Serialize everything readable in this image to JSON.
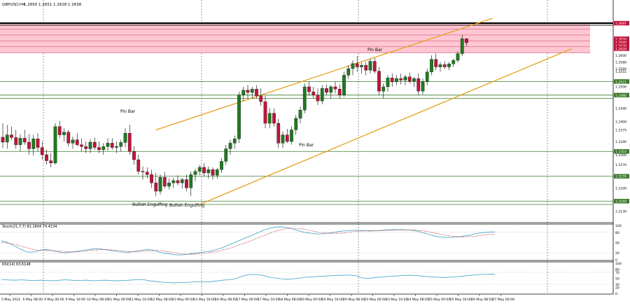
{
  "header": {
    "symbol": "GBPUSD,H4",
    "ohlc": "1.2650 1.2651 1.2628 1.2638"
  },
  "indicators": {
    "stoch_label": "Stoch(21,7,7) 81.2804 74.4134",
    "rsi_label": "RSI(14) 63.6148"
  },
  "annotations": [
    {
      "text": "Pin Bar",
      "id": "pin-bar-1"
    },
    {
      "text": "Bullish Engulfing",
      "id": "bullish-engulfing-1"
    },
    {
      "text": "Bullish Engulfing",
      "id": "bullish-engulfing-2"
    },
    {
      "text": "Pin Bar",
      "id": "pin-bar-2"
    },
    {
      "text": "Pin Bar",
      "id": "pin-bar-3"
    }
  ],
  "price_axis": [
    "1.2697",
    "1.2650",
    "1.2640",
    "1.2630",
    "1.2620",
    "1.2600",
    "1.2580",
    "1.2560",
    "1.2551",
    "1.2521",
    "1.2506",
    "1.2480",
    "1.2440",
    "1.2400",
    "1.2375",
    "1.2340",
    "1.2310",
    "1.2300",
    "1.2270",
    "1.2235",
    "1.2200",
    "1.2160",
    "1.2130",
    "1.2095"
  ],
  "stoch_axis": [
    "100",
    "80",
    "50",
    "20",
    "0"
  ],
  "rsi_axis": [
    "100",
    "80",
    "70",
    "50",
    "30",
    "20",
    "0"
  ],
  "time_axis": [
    "5 May 2022",
    "6 May 08:00",
    "9 May 00:00",
    "9 May 16:00",
    "10 May 08:00",
    "11 May 00:00",
    "11 May 16:00",
    "12 May 08:00",
    "13 May 00:00",
    "13 May 16:00",
    "16 May 08:00",
    "17 May 00:00",
    "17 May 16:00",
    "18 May 08:00",
    "19 May 00:00",
    "19 May 16:00",
    "20 May 08:00",
    "23 May 00:00",
    "23 May 16:00",
    "24 May 08:00",
    "25 May 00:00",
    "25 May 16:00",
    "26 May 08:00",
    "27 May 00:00"
  ],
  "colors": {
    "bull": "#1f7a1f",
    "bear": "#c0143c",
    "channel": "#e6a01e",
    "zone": "#ffc7d3",
    "support": "#3c7a2a"
  },
  "chart_data": {
    "type": "candlestick",
    "symbol": "GBPUSD",
    "timeframe": "H4",
    "ylim": [
      1.2095,
      1.2712
    ],
    "candles": [
      {
        "o": 1.2353,
        "h": 1.2395,
        "l": 1.232,
        "c": 1.2338
      },
      {
        "o": 1.2338,
        "h": 1.239,
        "l": 1.2318,
        "c": 1.236
      },
      {
        "o": 1.236,
        "h": 1.2385,
        "l": 1.2345,
        "c": 1.2352
      },
      {
        "o": 1.2352,
        "h": 1.2375,
        "l": 1.2318,
        "c": 1.233
      },
      {
        "o": 1.233,
        "h": 1.2362,
        "l": 1.231,
        "c": 1.235
      },
      {
        "o": 1.235,
        "h": 1.2375,
        "l": 1.233,
        "c": 1.2338
      },
      {
        "o": 1.2338,
        "h": 1.2362,
        "l": 1.23,
        "c": 1.2318
      },
      {
        "o": 1.2318,
        "h": 1.236,
        "l": 1.2298,
        "c": 1.2348
      },
      {
        "o": 1.2348,
        "h": 1.2365,
        "l": 1.231,
        "c": 1.2322
      },
      {
        "o": 1.2322,
        "h": 1.234,
        "l": 1.2285,
        "c": 1.23
      },
      {
        "o": 1.23,
        "h": 1.2315,
        "l": 1.227,
        "c": 1.2282
      },
      {
        "o": 1.2282,
        "h": 1.2305,
        "l": 1.2262,
        "c": 1.2275
      },
      {
        "o": 1.2275,
        "h": 1.2395,
        "l": 1.227,
        "c": 1.2385
      },
      {
        "o": 1.2385,
        "h": 1.2402,
        "l": 1.235,
        "c": 1.236
      },
      {
        "o": 1.236,
        "h": 1.238,
        "l": 1.234,
        "c": 1.2368
      },
      {
        "o": 1.2368,
        "h": 1.2375,
        "l": 1.2325,
        "c": 1.2335
      },
      {
        "o": 1.2335,
        "h": 1.2355,
        "l": 1.2318,
        "c": 1.2345
      },
      {
        "o": 1.2345,
        "h": 1.2365,
        "l": 1.2325,
        "c": 1.233
      },
      {
        "o": 1.233,
        "h": 1.235,
        "l": 1.231,
        "c": 1.2325
      },
      {
        "o": 1.2325,
        "h": 1.234,
        "l": 1.2305,
        "c": 1.2318
      },
      {
        "o": 1.2318,
        "h": 1.2348,
        "l": 1.2305,
        "c": 1.2338
      },
      {
        "o": 1.2338,
        "h": 1.2352,
        "l": 1.2315,
        "c": 1.2322
      },
      {
        "o": 1.2322,
        "h": 1.234,
        "l": 1.2305,
        "c": 1.2315
      },
      {
        "o": 1.2315,
        "h": 1.2335,
        "l": 1.23,
        "c": 1.2325
      },
      {
        "o": 1.2325,
        "h": 1.235,
        "l": 1.2312,
        "c": 1.2335
      },
      {
        "o": 1.2335,
        "h": 1.235,
        "l": 1.2315,
        "c": 1.2322
      },
      {
        "o": 1.2322,
        "h": 1.234,
        "l": 1.2305,
        "c": 1.2325
      },
      {
        "o": 1.2325,
        "h": 1.2345,
        "l": 1.231,
        "c": 1.2337
      },
      {
        "o": 1.2337,
        "h": 1.238,
        "l": 1.2322,
        "c": 1.2365
      },
      {
        "o": 1.2365,
        "h": 1.239,
        "l": 1.23,
        "c": 1.231
      },
      {
        "o": 1.231,
        "h": 1.2325,
        "l": 1.227,
        "c": 1.2285
      },
      {
        "o": 1.2285,
        "h": 1.23,
        "l": 1.224,
        "c": 1.225
      },
      {
        "o": 1.225,
        "h": 1.2265,
        "l": 1.2225,
        "c": 1.2248
      },
      {
        "o": 1.2248,
        "h": 1.2262,
        "l": 1.2228,
        "c": 1.224
      },
      {
        "o": 1.224,
        "h": 1.2255,
        "l": 1.22,
        "c": 1.2215
      },
      {
        "o": 1.2215,
        "h": 1.2245,
        "l": 1.2175,
        "c": 1.219
      },
      {
        "o": 1.219,
        "h": 1.224,
        "l": 1.218,
        "c": 1.2232
      },
      {
        "o": 1.2232,
        "h": 1.2248,
        "l": 1.2198,
        "c": 1.2205
      },
      {
        "o": 1.2205,
        "h": 1.2228,
        "l": 1.2195,
        "c": 1.2215
      },
      {
        "o": 1.2215,
        "h": 1.223,
        "l": 1.22,
        "c": 1.2222
      },
      {
        "o": 1.2222,
        "h": 1.2238,
        "l": 1.2208,
        "c": 1.2215
      },
      {
        "o": 1.2215,
        "h": 1.223,
        "l": 1.2198,
        "c": 1.2225
      },
      {
        "o": 1.2225,
        "h": 1.224,
        "l": 1.219,
        "c": 1.22
      },
      {
        "o": 1.22,
        "h": 1.225,
        "l": 1.2175,
        "c": 1.224
      },
      {
        "o": 1.224,
        "h": 1.2258,
        "l": 1.222,
        "c": 1.225
      },
      {
        "o": 1.225,
        "h": 1.227,
        "l": 1.2238,
        "c": 1.2262
      },
      {
        "o": 1.2262,
        "h": 1.2275,
        "l": 1.2235,
        "c": 1.2245
      },
      {
        "o": 1.2245,
        "h": 1.2265,
        "l": 1.2228,
        "c": 1.2255
      },
      {
        "o": 1.2255,
        "h": 1.2262,
        "l": 1.2225,
        "c": 1.2238
      },
      {
        "o": 1.2238,
        "h": 1.226,
        "l": 1.2228,
        "c": 1.2255
      },
      {
        "o": 1.2255,
        "h": 1.229,
        "l": 1.2245,
        "c": 1.228
      },
      {
        "o": 1.228,
        "h": 1.233,
        "l": 1.227,
        "c": 1.2318
      },
      {
        "o": 1.2318,
        "h": 1.2345,
        "l": 1.23,
        "c": 1.2335
      },
      {
        "o": 1.2335,
        "h": 1.2358,
        "l": 1.2318,
        "c": 1.2348
      },
      {
        "o": 1.2348,
        "h": 1.249,
        "l": 1.2335,
        "c": 1.248
      },
      {
        "o": 1.248,
        "h": 1.2505,
        "l": 1.2462,
        "c": 1.2495
      },
      {
        "o": 1.2495,
        "h": 1.251,
        "l": 1.247,
        "c": 1.2488
      },
      {
        "o": 1.2488,
        "h": 1.2505,
        "l": 1.247,
        "c": 1.2498
      },
      {
        "o": 1.2498,
        "h": 1.251,
        "l": 1.247,
        "c": 1.2478
      },
      {
        "o": 1.2478,
        "h": 1.25,
        "l": 1.2448,
        "c": 1.246
      },
      {
        "o": 1.246,
        "h": 1.2478,
        "l": 1.238,
        "c": 1.2395
      },
      {
        "o": 1.2395,
        "h": 1.244,
        "l": 1.238,
        "c": 1.2425
      },
      {
        "o": 1.2425,
        "h": 1.244,
        "l": 1.2385,
        "c": 1.2395
      },
      {
        "o": 1.2395,
        "h": 1.2408,
        "l": 1.232,
        "c": 1.2335
      },
      {
        "o": 1.2335,
        "h": 1.237,
        "l": 1.232,
        "c": 1.236
      },
      {
        "o": 1.236,
        "h": 1.2378,
        "l": 1.2335,
        "c": 1.234
      },
      {
        "o": 1.234,
        "h": 1.2385,
        "l": 1.233,
        "c": 1.2375
      },
      {
        "o": 1.2375,
        "h": 1.242,
        "l": 1.236,
        "c": 1.241
      },
      {
        "o": 1.241,
        "h": 1.2445,
        "l": 1.2395,
        "c": 1.2435
      },
      {
        "o": 1.2435,
        "h": 1.2515,
        "l": 1.2425,
        "c": 1.2505
      },
      {
        "o": 1.2505,
        "h": 1.252,
        "l": 1.2478,
        "c": 1.249
      },
      {
        "o": 1.249,
        "h": 1.2505,
        "l": 1.247,
        "c": 1.248
      },
      {
        "o": 1.248,
        "h": 1.25,
        "l": 1.245,
        "c": 1.2462
      },
      {
        "o": 1.2462,
        "h": 1.251,
        "l": 1.2452,
        "c": 1.25
      },
      {
        "o": 1.25,
        "h": 1.2512,
        "l": 1.248,
        "c": 1.2488
      },
      {
        "o": 1.2488,
        "h": 1.251,
        "l": 1.247,
        "c": 1.2505
      },
      {
        "o": 1.2505,
        "h": 1.252,
        "l": 1.2485,
        "c": 1.2498
      },
      {
        "o": 1.2498,
        "h": 1.2512,
        "l": 1.247,
        "c": 1.248
      },
      {
        "o": 1.248,
        "h": 1.255,
        "l": 1.2475,
        "c": 1.254
      },
      {
        "o": 1.254,
        "h": 1.257,
        "l": 1.2528,
        "c": 1.256
      },
      {
        "o": 1.256,
        "h": 1.2585,
        "l": 1.254,
        "c": 1.2575
      },
      {
        "o": 1.2575,
        "h": 1.2598,
        "l": 1.255,
        "c": 1.2565
      },
      {
        "o": 1.2565,
        "h": 1.2578,
        "l": 1.2545,
        "c": 1.257
      },
      {
        "o": 1.257,
        "h": 1.258,
        "l": 1.254,
        "c": 1.2555
      },
      {
        "o": 1.2555,
        "h": 1.259,
        "l": 1.2545,
        "c": 1.2582
      },
      {
        "o": 1.2582,
        "h": 1.2592,
        "l": 1.2545,
        "c": 1.2552
      },
      {
        "o": 1.2552,
        "h": 1.2565,
        "l": 1.248,
        "c": 1.2492
      },
      {
        "o": 1.2492,
        "h": 1.2515,
        "l": 1.247,
        "c": 1.2505
      },
      {
        "o": 1.2505,
        "h": 1.254,
        "l": 1.249,
        "c": 1.2532
      },
      {
        "o": 1.2532,
        "h": 1.2545,
        "l": 1.2505,
        "c": 1.252
      },
      {
        "o": 1.252,
        "h": 1.254,
        "l": 1.251,
        "c": 1.253
      },
      {
        "o": 1.253,
        "h": 1.2545,
        "l": 1.2512,
        "c": 1.2525
      },
      {
        "o": 1.2525,
        "h": 1.2542,
        "l": 1.251,
        "c": 1.2535
      },
      {
        "o": 1.2535,
        "h": 1.2548,
        "l": 1.2515,
        "c": 1.2522
      },
      {
        "o": 1.2522,
        "h": 1.2535,
        "l": 1.2505,
        "c": 1.253
      },
      {
        "o": 1.253,
        "h": 1.2545,
        "l": 1.248,
        "c": 1.2492
      },
      {
        "o": 1.2492,
        "h": 1.253,
        "l": 1.2482,
        "c": 1.252
      },
      {
        "o": 1.252,
        "h": 1.256,
        "l": 1.251,
        "c": 1.255
      },
      {
        "o": 1.255,
        "h": 1.26,
        "l": 1.254,
        "c": 1.2588
      },
      {
        "o": 1.2588,
        "h": 1.2605,
        "l": 1.2555,
        "c": 1.2565
      },
      {
        "o": 1.2565,
        "h": 1.258,
        "l": 1.255,
        "c": 1.2572
      },
      {
        "o": 1.2572,
        "h": 1.2582,
        "l": 1.2558,
        "c": 1.2565
      },
      {
        "o": 1.2565,
        "h": 1.258,
        "l": 1.2555,
        "c": 1.2574
      },
      {
        "o": 1.2574,
        "h": 1.259,
        "l": 1.2565,
        "c": 1.2585
      },
      {
        "o": 1.2585,
        "h": 1.2612,
        "l": 1.2578,
        "c": 1.2605
      },
      {
        "o": 1.2605,
        "h": 1.266,
        "l": 1.2598,
        "c": 1.265
      },
      {
        "o": 1.265,
        "h": 1.2651,
        "l": 1.2628,
        "c": 1.2638
      }
    ],
    "resistance_zone": [
      1.2608,
      1.2697
    ],
    "horizontal_levels": [
      1.2521,
      1.248,
      1.247,
      1.231,
      1.2235,
      1.216,
      1.215
    ],
    "channel_lines": [
      {
        "from": {
          "index": 35,
          "price": 1.2375
        },
        "to": {
          "index": 112,
          "price": 1.2712
        }
      },
      {
        "from": {
          "index": 45,
          "price": 1.215
        },
        "to": {
          "index": 130,
          "price": 1.262
        }
      }
    ],
    "stochastic": {
      "k": [
        55,
        52,
        45,
        38,
        30,
        24,
        22,
        24,
        28,
        30,
        28,
        25,
        22,
        20,
        22,
        24,
        26,
        28,
        30,
        32,
        32,
        30,
        28,
        26,
        24,
        22,
        22,
        24,
        26,
        28,
        30,
        28,
        24,
        20,
        18,
        16,
        14,
        14,
        16,
        18,
        20,
        22,
        24,
        26,
        30,
        34,
        40,
        46,
        52,
        58,
        64,
        70,
        76,
        82,
        88,
        92,
        95,
        96,
        95,
        92,
        88,
        84,
        80,
        78,
        76,
        75,
        76,
        78,
        80,
        82,
        84,
        85,
        86,
        86,
        85,
        84,
        84,
        85,
        86,
        87,
        88,
        88,
        88,
        87,
        86,
        84,
        80,
        76,
        72,
        68,
        66,
        65,
        65,
        66,
        68,
        70,
        72,
        76,
        78,
        80,
        81,
        81
      ],
      "d": [
        50,
        49,
        47,
        44,
        40,
        36,
        32,
        29,
        27,
        27,
        27,
        26,
        25,
        24,
        23,
        23,
        24,
        25,
        27,
        28,
        29,
        30,
        29,
        28,
        27,
        26,
        24,
        24,
        24,
        25,
        26,
        27,
        27,
        26,
        24,
        21,
        19,
        17,
        16,
        16,
        17,
        18,
        20,
        22,
        24,
        27,
        31,
        35,
        40,
        45,
        50,
        55,
        61,
        67,
        72,
        78,
        83,
        87,
        90,
        92,
        92,
        91,
        89,
        86,
        83,
        80,
        78,
        77,
        77,
        77,
        78,
        80,
        82,
        83,
        84,
        85,
        85,
        85,
        85,
        86,
        86,
        87,
        87,
        87,
        87,
        86,
        85,
        83,
        80,
        77,
        74,
        71,
        69,
        68,
        67,
        67,
        68,
        69,
        71,
        73,
        74,
        74
      ]
    },
    "rsi": [
      46,
      45,
      44,
      44,
      45,
      44,
      43,
      43,
      44,
      43,
      42,
      43,
      44,
      45,
      44,
      43,
      43,
      44,
      43,
      42,
      43,
      44,
      43,
      42,
      42,
      43,
      44,
      45,
      46,
      45,
      42,
      40,
      38,
      37,
      36,
      35,
      36,
      36,
      37,
      38,
      39,
      38,
      38,
      40,
      42,
      44,
      45,
      47,
      52,
      58,
      62,
      63,
      62,
      60,
      55,
      52,
      50,
      48,
      47,
      48,
      50,
      52,
      54,
      55,
      56,
      57,
      58,
      59,
      60,
      60,
      61,
      60,
      58,
      52,
      50,
      51,
      53,
      54,
      56,
      57,
      58,
      59,
      60,
      60,
      59,
      58,
      56,
      55,
      54,
      53,
      53,
      54,
      55,
      57,
      58,
      60,
      62,
      63,
      63,
      64,
      63.6
    ]
  }
}
